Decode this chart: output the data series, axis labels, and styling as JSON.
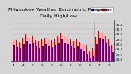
{
  "title": "Milwaukee Weather Barometric Pressure",
  "subtitle": "Daily High/Low",
  "background_color": "#d4d4d4",
  "plot_bg_color": "#d4d4d4",
  "bar_color_red": "#dd0000",
  "bar_color_blue": "#0000cc",
  "legend_blue": "High",
  "legend_red": "Low",
  "ylim": [
    28.9,
    30.55
  ],
  "ybase": 28.9,
  "yticks": [
    29.0,
    29.2,
    29.4,
    29.6,
    29.8,
    30.0,
    30.2,
    30.4
  ],
  "x_labels": [
    "4",
    "4",
    "4",
    "4",
    "5",
    "5",
    "5",
    "5",
    "5",
    "5",
    "5",
    "5",
    "5",
    "5",
    "5",
    "6",
    "6",
    "6",
    "6",
    "6",
    "6",
    "6",
    "6",
    "6",
    "6",
    "6",
    "7",
    "7",
    "7",
    "7",
    "7",
    "1"
  ],
  "highs": [
    29.8,
    29.75,
    29.68,
    29.85,
    30.0,
    29.88,
    29.92,
    29.75,
    29.72,
    29.8,
    29.85,
    29.78,
    29.75,
    29.82,
    29.9,
    30.05,
    29.92,
    29.85,
    29.8,
    29.72,
    29.78,
    29.68,
    29.62,
    29.55,
    29.3,
    29.42,
    29.88,
    30.12,
    30.05,
    29.92,
    29.78,
    29.55
  ],
  "lows": [
    29.55,
    29.48,
    29.42,
    29.58,
    29.72,
    29.6,
    29.65,
    29.5,
    29.45,
    29.52,
    29.58,
    29.5,
    29.48,
    29.55,
    29.62,
    29.78,
    29.65,
    29.58,
    29.52,
    29.45,
    29.5,
    29.4,
    29.32,
    29.22,
    29.02,
    29.12,
    29.6,
    29.85,
    29.78,
    29.65,
    29.5,
    29.28
  ],
  "dashed_vline_positions": [
    25.5,
    26.5
  ],
  "title_fontsize": 4.5,
  "tick_fontsize": 3.0,
  "legend_fontsize": 2.8
}
